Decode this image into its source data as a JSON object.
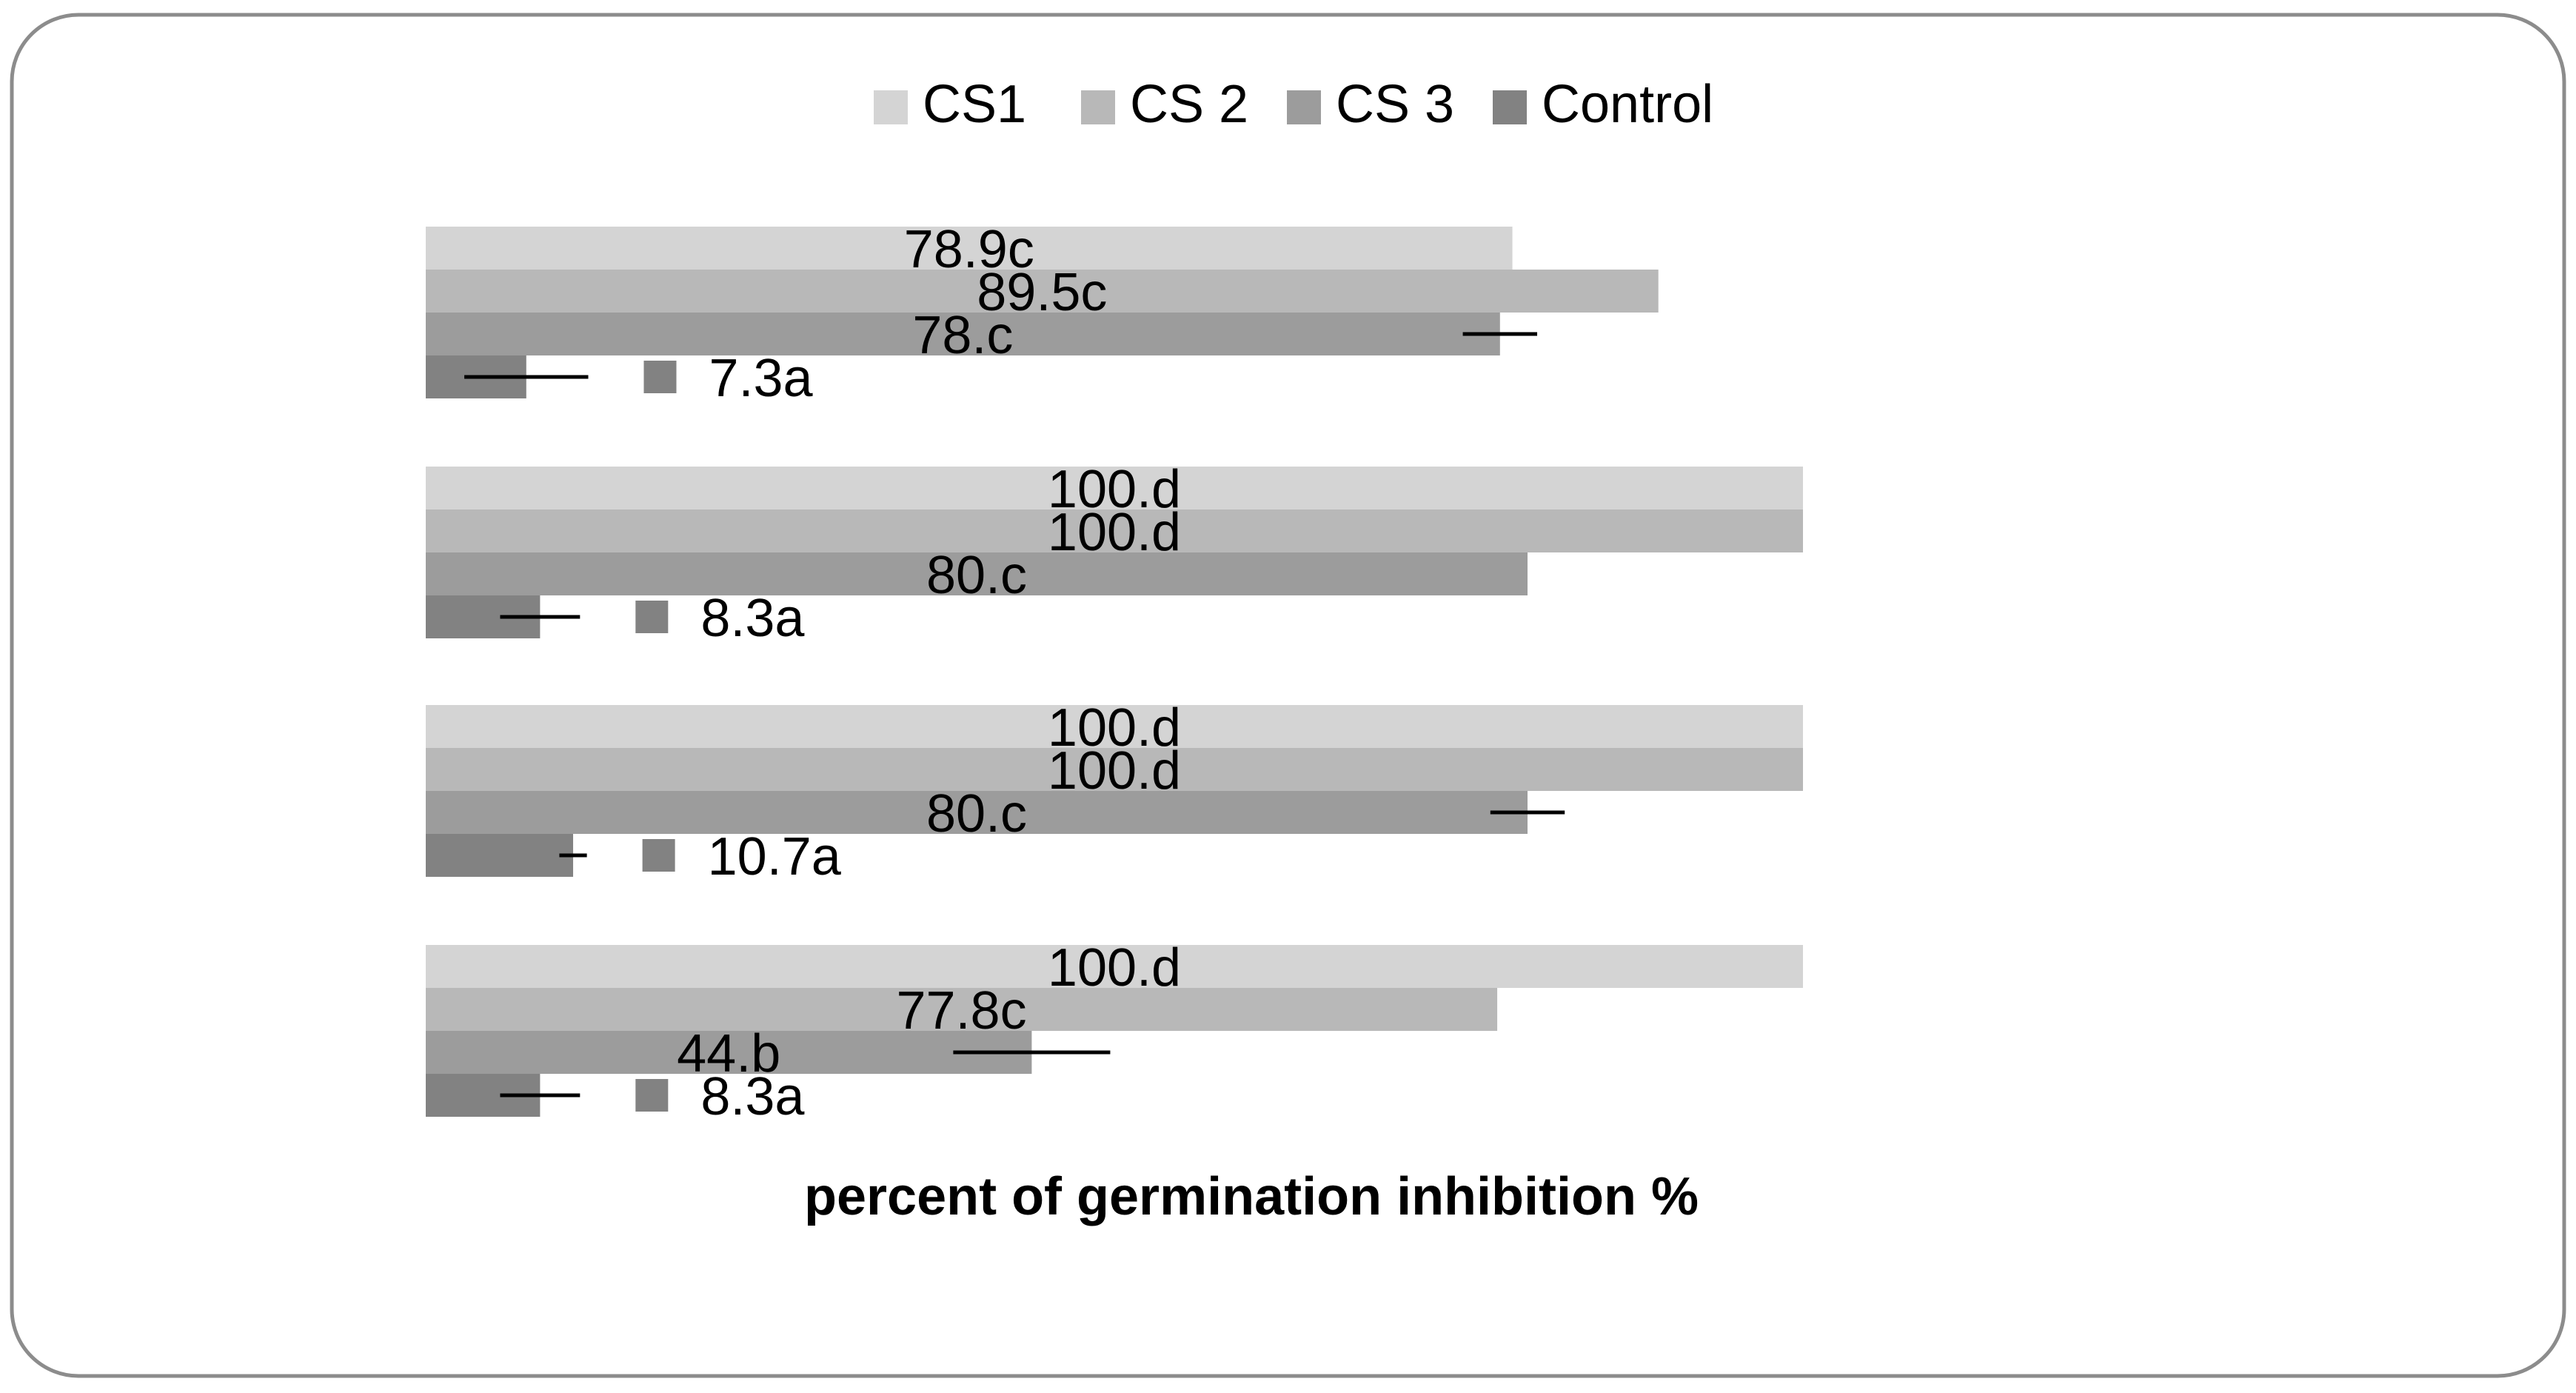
{
  "chart_data": {
    "type": "bar",
    "orientation": "horizontal",
    "title": "",
    "xlabel": "percent of germination inhibition %",
    "ylabel": "",
    "xlim": [
      0,
      100
    ],
    "gridlines": false,
    "legend_position": "top",
    "groups": 4,
    "series": [
      {
        "name": "CS1",
        "color": "#d4d4d4",
        "values": [
          78.9,
          100,
          100,
          100
        ],
        "labels": [
          "78.9c",
          "100.d",
          "100.d",
          "100.d"
        ],
        "errors": [
          null,
          null,
          null,
          null
        ]
      },
      {
        "name": "CS 2",
        "color": "#b8b8b8",
        "values": [
          89.5,
          100,
          100,
          77.8
        ],
        "labels": [
          "89.5c",
          "100.d",
          "100.d",
          "77.8c"
        ],
        "errors": [
          null,
          null,
          null,
          null
        ]
      },
      {
        "name": "CS 3",
        "color": "#9c9c9c",
        "values": [
          78,
          80,
          80,
          44
        ],
        "labels": [
          "78.c",
          "80.c",
          "80.c",
          "44.b"
        ],
        "errors": [
          2.7,
          null,
          2.7,
          5.7
        ]
      },
      {
        "name": "Control",
        "color": "#828282",
        "values": [
          7.3,
          8.3,
          10.7,
          8.3
        ],
        "labels": [
          "7.3a",
          "8.3a",
          "10.7a",
          "8.3a"
        ],
        "errors": [
          4.5,
          2.9,
          1.0,
          2.9
        ]
      }
    ]
  }
}
